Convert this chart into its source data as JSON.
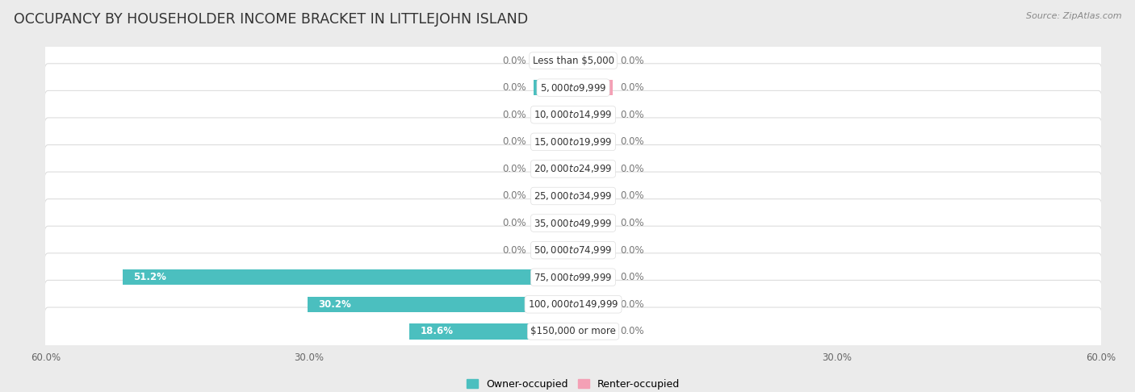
{
  "title": "OCCUPANCY BY HOUSEHOLDER INCOME BRACKET IN LITTLEJOHN ISLAND",
  "source": "Source: ZipAtlas.com",
  "categories": [
    "Less than $5,000",
    "$5,000 to $9,999",
    "$10,000 to $14,999",
    "$15,000 to $19,999",
    "$20,000 to $24,999",
    "$25,000 to $34,999",
    "$35,000 to $49,999",
    "$50,000 to $74,999",
    "$75,000 to $99,999",
    "$100,000 to $149,999",
    "$150,000 or more"
  ],
  "owner_values": [
    0.0,
    0.0,
    0.0,
    0.0,
    0.0,
    0.0,
    0.0,
    0.0,
    51.2,
    30.2,
    18.6
  ],
  "renter_values": [
    0.0,
    0.0,
    0.0,
    0.0,
    0.0,
    0.0,
    0.0,
    0.0,
    0.0,
    0.0,
    0.0
  ],
  "owner_color": "#4bbfbf",
  "renter_color": "#f4a0b5",
  "axis_max": 60.0,
  "background_color": "#ebebeb",
  "row_bg_color": "#f7f7f7",
  "stub_size": 4.5,
  "bar_height": 0.58,
  "title_fontsize": 12.5,
  "label_fontsize": 8.5,
  "tick_fontsize": 8.5,
  "source_fontsize": 8.0,
  "cat_label_fontsize": 8.5
}
